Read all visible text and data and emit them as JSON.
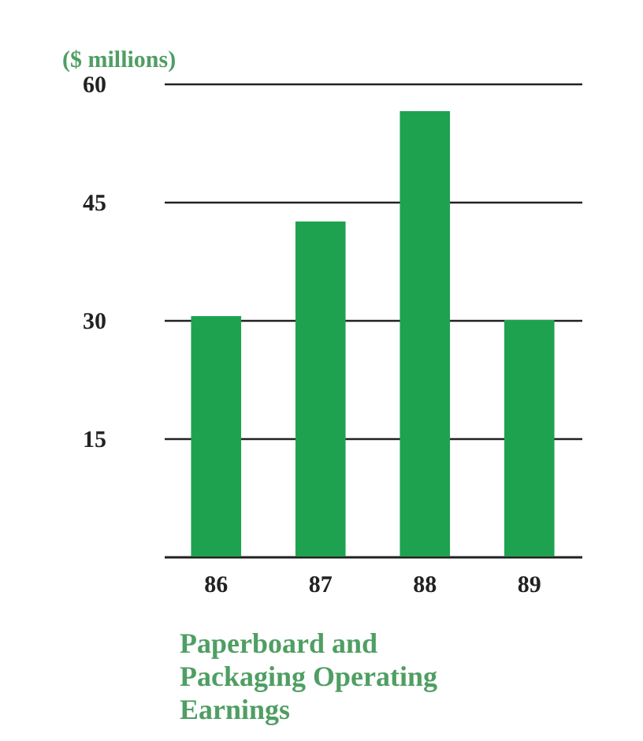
{
  "chart_data": {
    "type": "bar",
    "title": "Paperboard and Packaging Operating Earnings",
    "ylabel": "($ millions)",
    "categories": [
      "86",
      "87",
      "88",
      "89"
    ],
    "values": [
      30.5,
      42.5,
      56.5,
      30
    ],
    "color": "#1fa24f",
    "ylim": [
      0,
      60
    ],
    "yticks": [
      15,
      30,
      45,
      60
    ],
    "grid": "y"
  }
}
